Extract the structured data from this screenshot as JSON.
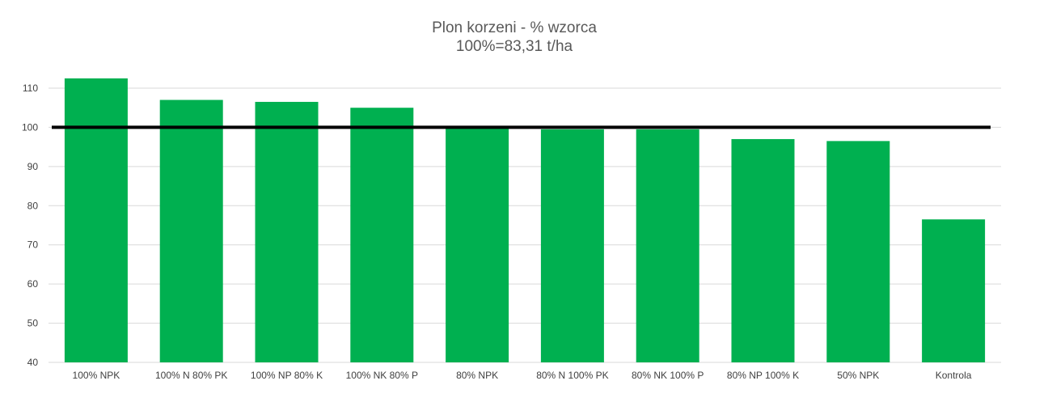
{
  "chart_data": {
    "type": "bar",
    "title": "Plon korzeni - % wzorca",
    "subtitle": "100%=83,31 t/ha",
    "xlabel": "",
    "ylabel": "",
    "categories": [
      "100% NPK",
      "100% N 80% PK",
      "100% NP 80% K",
      "100% NK 80% P",
      "80% NPK",
      "80% N 100% PK",
      "80% NK 100% P",
      "80% NP 100% K",
      "50% NPK",
      "Kontrola"
    ],
    "values": [
      112.5,
      107.0,
      106.5,
      105.0,
      100.0,
      99.5,
      99.5,
      97.0,
      96.5,
      76.5
    ],
    "ylim": [
      40,
      110
    ],
    "yticks": [
      40,
      50,
      60,
      70,
      80,
      90,
      100,
      110
    ],
    "reference_line": 100,
    "bar_color": "#00b050",
    "reference_line_color": "#000000",
    "grid": true,
    "legend": "none"
  }
}
